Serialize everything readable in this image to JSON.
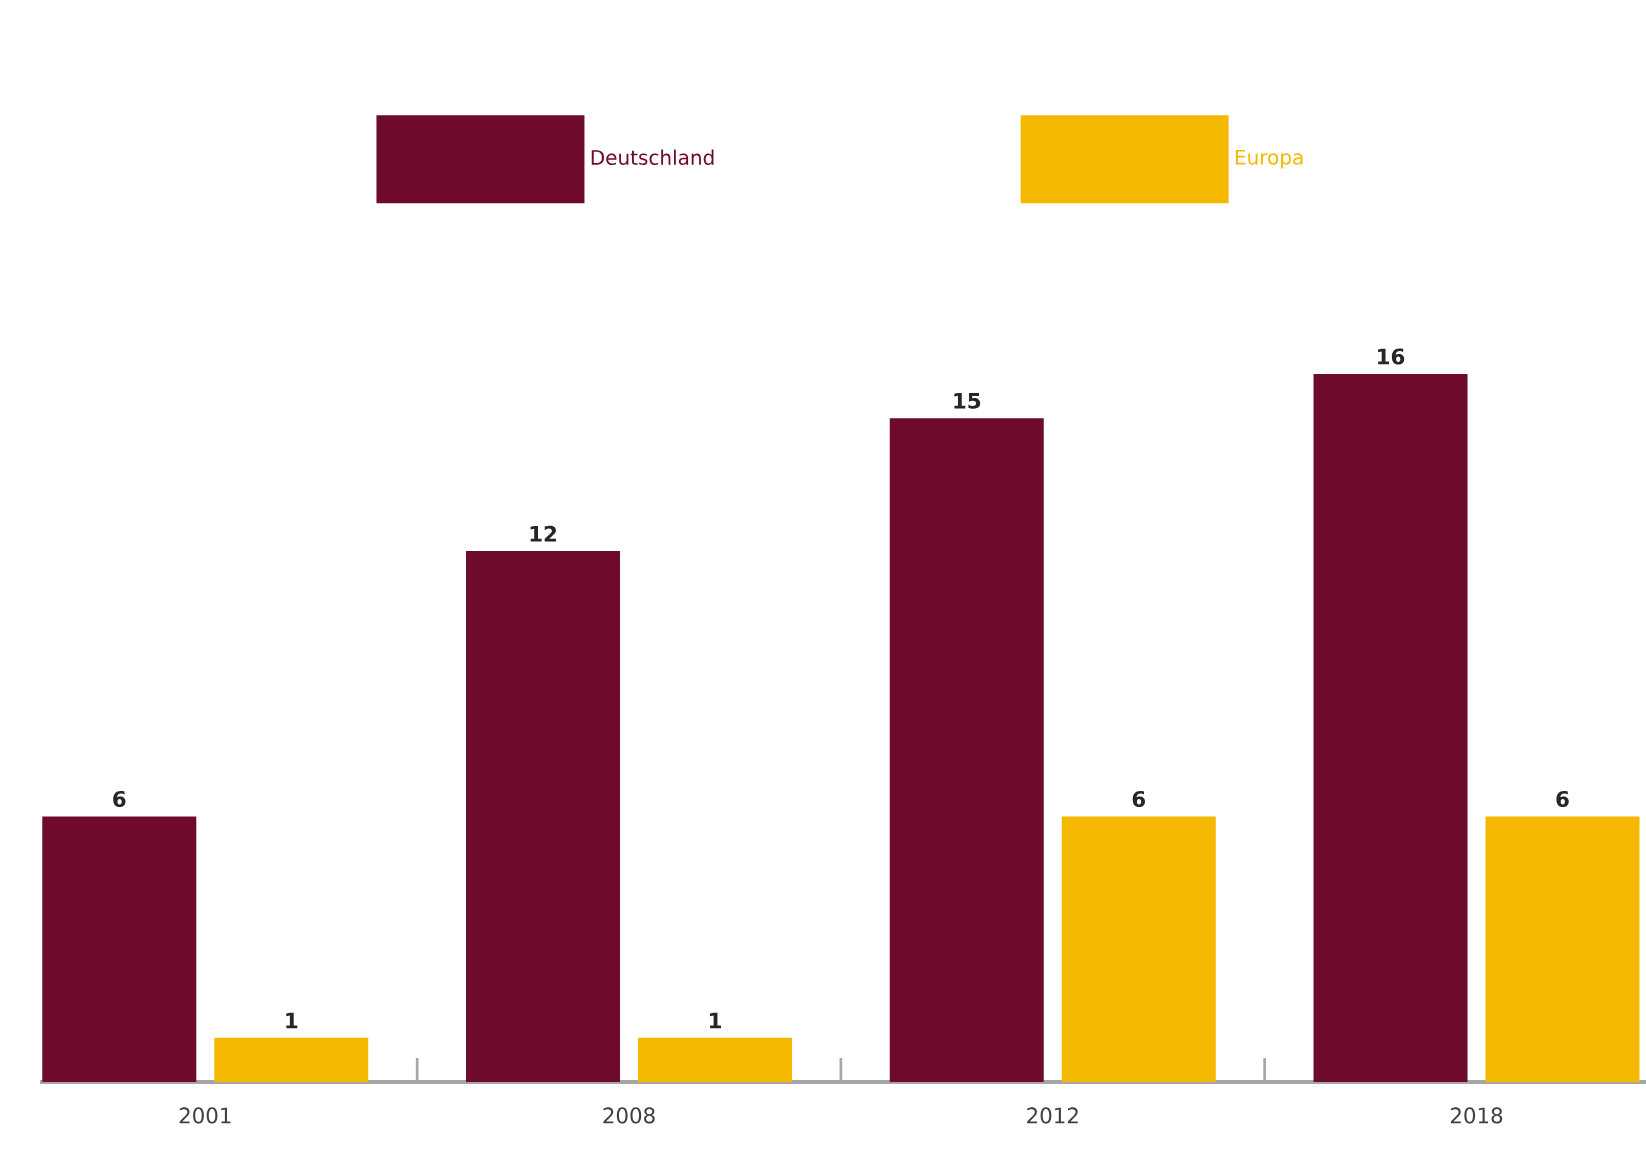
{
  "chart_data": {
    "type": "bar",
    "categories": [
      "2001",
      "2008",
      "2012",
      "2018"
    ],
    "series": [
      {
        "name": "Deutschland",
        "color": "#6e0a2a",
        "values": [
          6,
          12,
          15,
          16
        ]
      },
      {
        "name": "Europa",
        "color": "#f5b800",
        "values": [
          1,
          1,
          6,
          6
        ]
      }
    ],
    "data_labels": true,
    "legend": "top"
  }
}
